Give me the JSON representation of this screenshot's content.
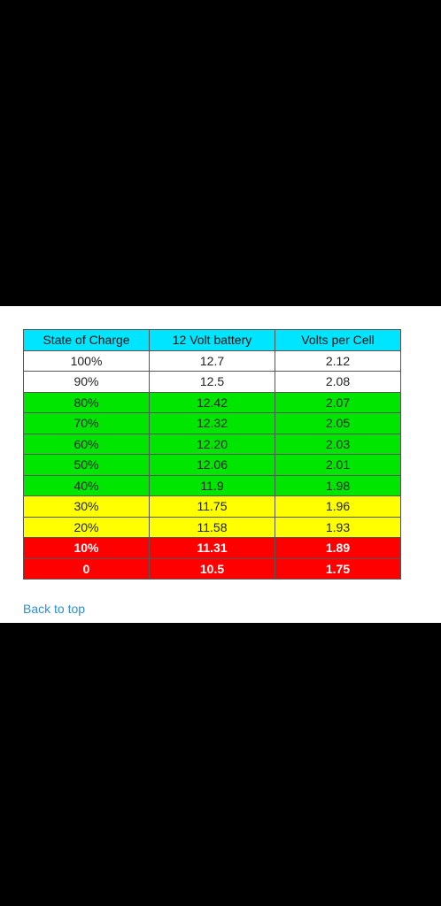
{
  "table": {
    "headers": [
      "State of Charge",
      "12 Volt battery",
      "Volts per Cell"
    ],
    "rows": [
      {
        "soc": "100%",
        "volts12": "12.7",
        "cell": "2.12",
        "band": "white"
      },
      {
        "soc": "90%",
        "volts12": "12.5",
        "cell": "2.08",
        "band": "white"
      },
      {
        "soc": "80%",
        "volts12": "12.42",
        "cell": "2.07",
        "band": "green"
      },
      {
        "soc": "70%",
        "volts12": "12.32",
        "cell": "2.05",
        "band": "green"
      },
      {
        "soc": "60%",
        "volts12": "12.20",
        "cell": "2.03",
        "band": "green"
      },
      {
        "soc": "50%",
        "volts12": "12.06",
        "cell": "2.01",
        "band": "green"
      },
      {
        "soc": "40%",
        "volts12": "11.9",
        "cell": "1.98",
        "band": "green"
      },
      {
        "soc": "30%",
        "volts12": "11.75",
        "cell": "1.96",
        "band": "yellow"
      },
      {
        "soc": "20%",
        "volts12": "11.58",
        "cell": "1.93",
        "band": "yellow"
      },
      {
        "soc": "10%",
        "volts12": "11.31",
        "cell": "1.89",
        "band": "red"
      },
      {
        "soc": "0",
        "volts12": "10.5",
        "cell": "1.75",
        "band": "red"
      }
    ]
  },
  "back_to_top": "Back to top",
  "colors": {
    "header": "#00e5ff",
    "green": "#00e600",
    "yellow": "#ffff00",
    "red": "#ff0000",
    "link": "#2a8fd6"
  }
}
